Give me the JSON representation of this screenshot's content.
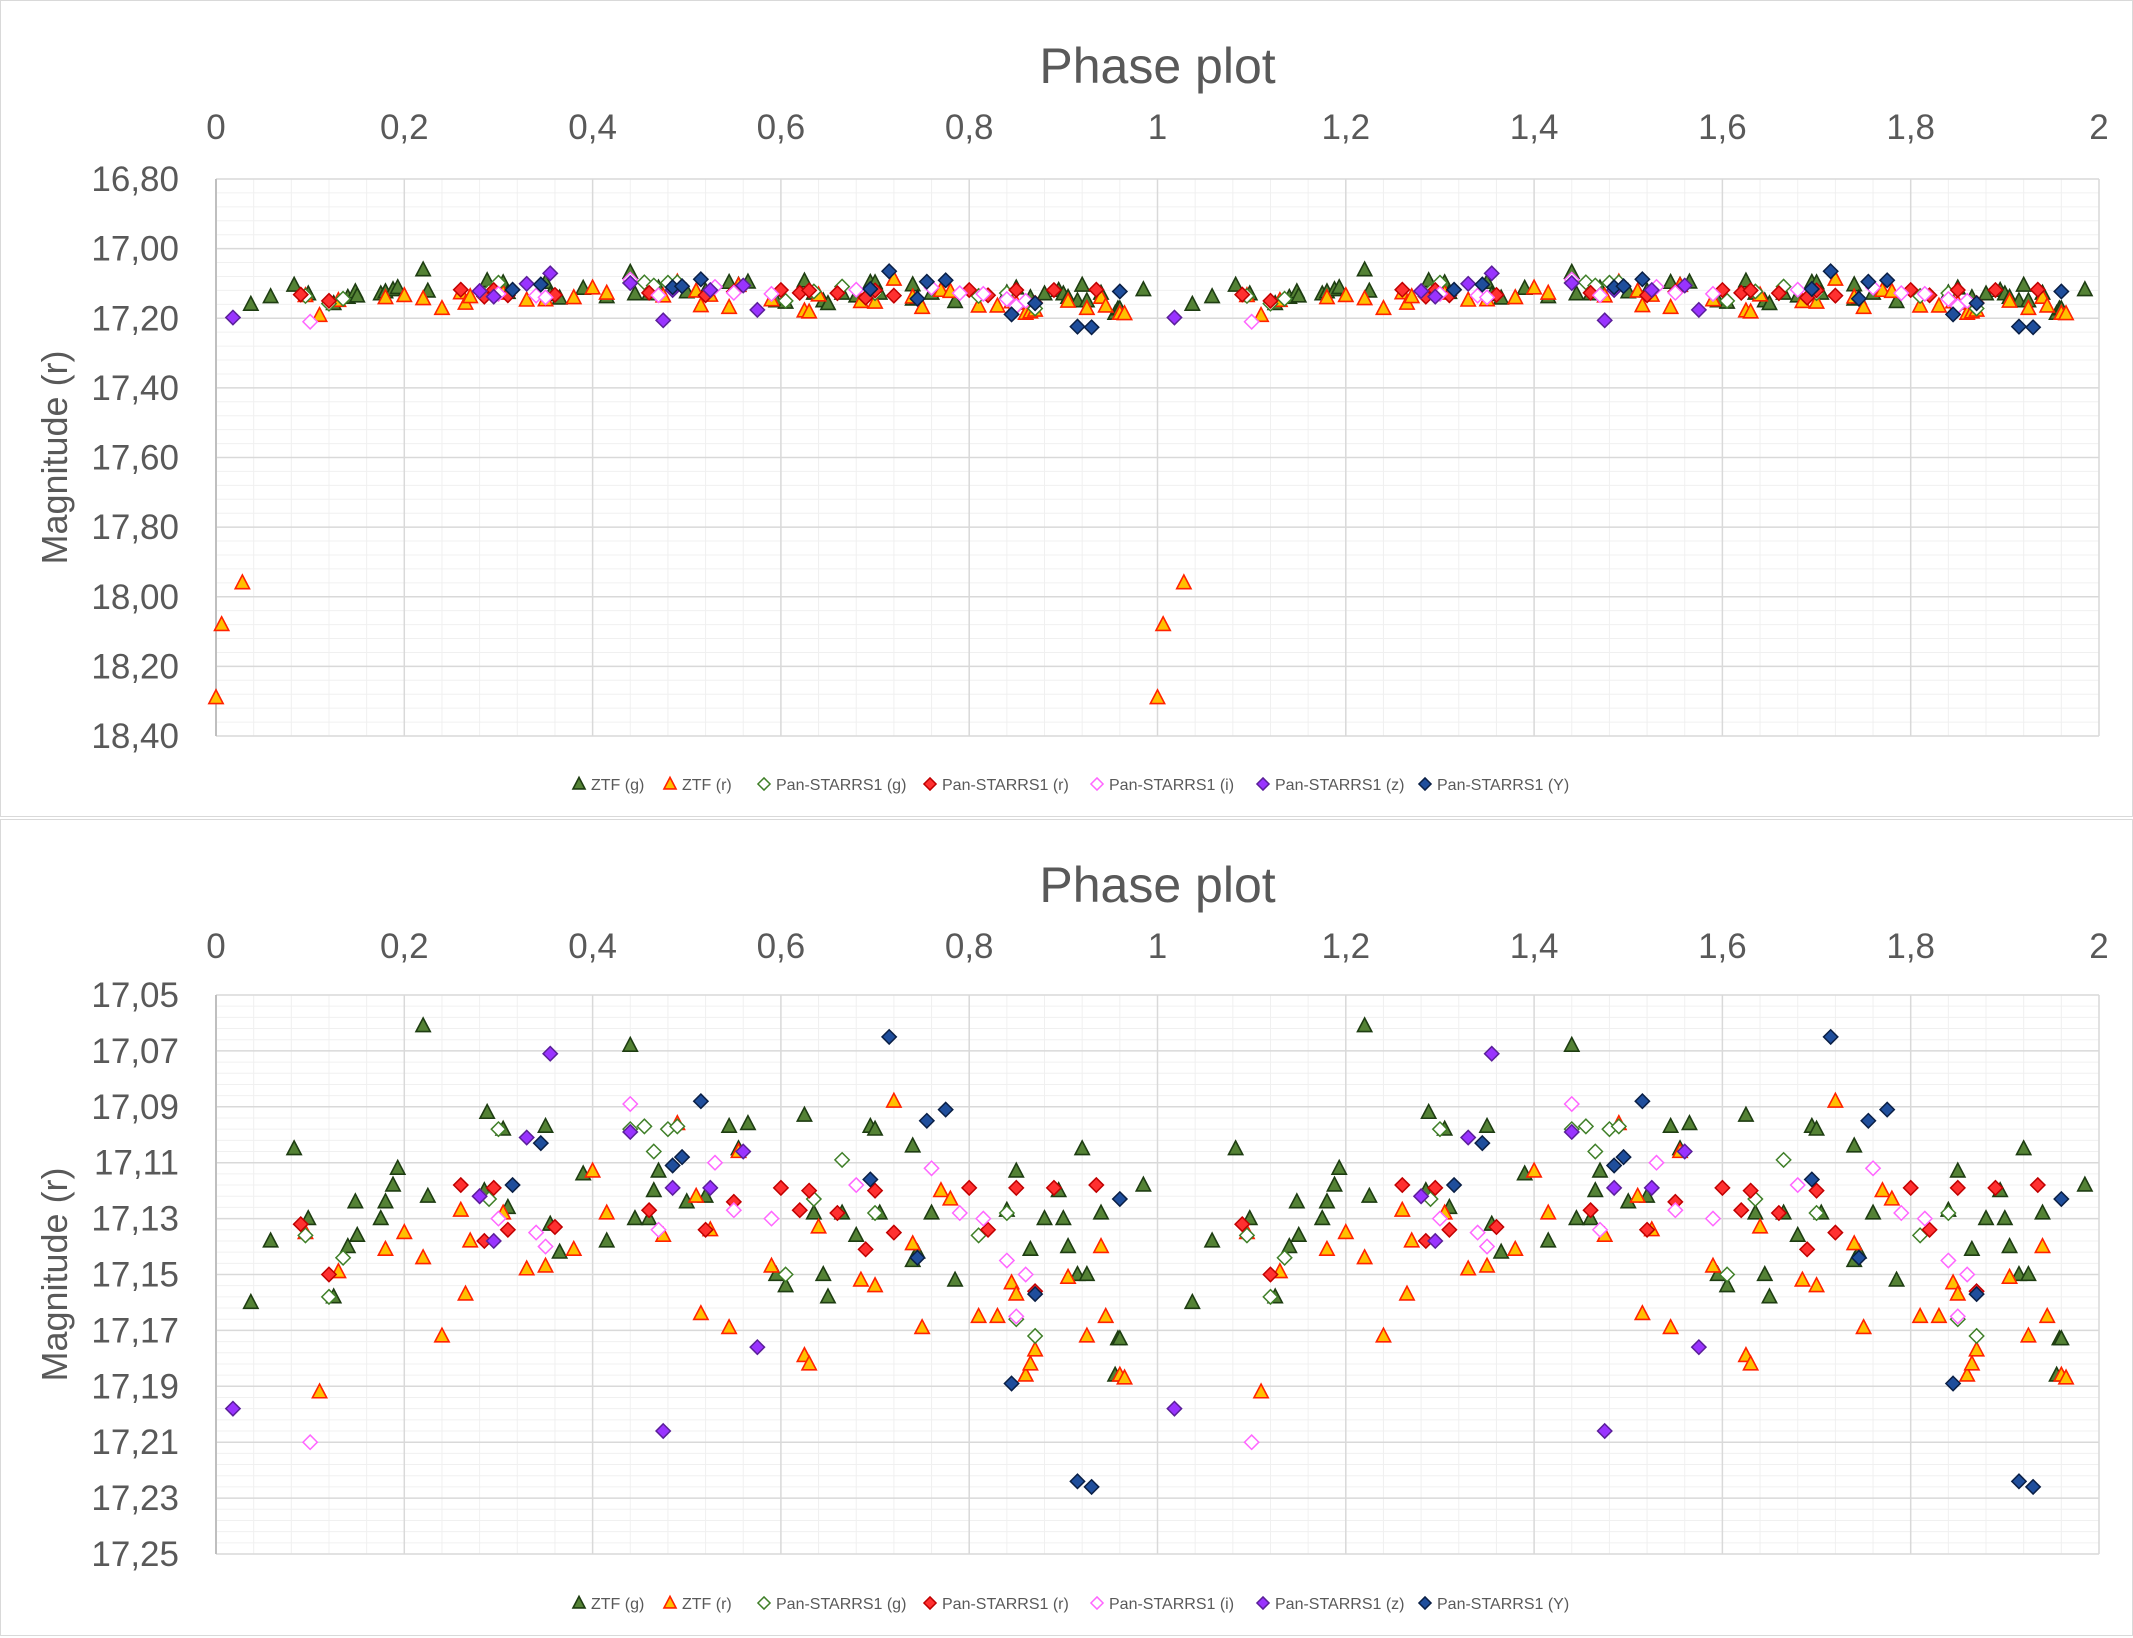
{
  "styles": {
    "ZTF (g)": {
      "shape": "triangle",
      "fill": "#548235",
      "stroke": "#1e3d12"
    },
    "ZTF (r)": {
      "shape": "triangle",
      "fill": "#ffc000",
      "stroke": "#ff2200"
    },
    "Pan-STARRS1 (g)": {
      "shape": "diamond",
      "fill": "#ffffff",
      "stroke": "#3f7f28"
    },
    "Pan-STARRS1 (r)": {
      "shape": "diamond",
      "fill": "#ff3030",
      "stroke": "#c00000"
    },
    "Pan-STARRS1 (i)": {
      "shape": "diamond",
      "fill": "#ffffff",
      "stroke": "#ff66ff"
    },
    "Pan-STARRS1 (z)": {
      "shape": "diamond",
      "fill": "#9933ff",
      "stroke": "#5a1f99"
    },
    "Pan-STARRS1 (Y)": {
      "shape": "diamond",
      "fill": "#1f4e9c",
      "stroke": "#0a1f45"
    }
  },
  "chart_data": [
    {
      "type": "scatter",
      "title": "Phase plot",
      "xlabel": "",
      "ylabel": "Magnitude (r)",
      "xlim": [
        0,
        2
      ],
      "ylim": [
        16.8,
        18.4
      ],
      "y_inverted": true,
      "x_axis_position": "top",
      "xticks": [
        "0",
        "0,2",
        "0,4",
        "0,6",
        "0,8",
        "1",
        "1,2",
        "1,4",
        "1,6",
        "1,8",
        "2"
      ],
      "yticks": [
        "16,80",
        "17,00",
        "17,20",
        "17,40",
        "17,60",
        "17,80",
        "18,00",
        "18,20",
        "18,40"
      ],
      "grid": true,
      "legend_position": "bottom",
      "series": [
        {
          "name": "ZTF (g)",
          "points": [
            [
              0.037,
              17.16
            ],
            [
              0.058,
              17.138
            ],
            [
              0.083,
              17.105
            ],
            [
              0.098,
              17.13
            ],
            [
              0.125,
              17.158
            ],
            [
              0.14,
              17.14
            ],
            [
              0.148,
              17.124
            ],
            [
              0.15,
              17.136
            ],
            [
              0.175,
              17.13
            ],
            [
              0.18,
              17.124
            ],
            [
              0.188,
              17.118
            ],
            [
              0.193,
              17.112
            ],
            [
              0.22,
              17.061
            ],
            [
              0.225,
              17.122
            ],
            [
              0.285,
              17.12
            ],
            [
              0.288,
              17.092
            ],
            [
              0.305,
              17.098
            ],
            [
              0.31,
              17.126
            ],
            [
              0.35,
              17.097
            ],
            [
              0.355,
              17.132
            ],
            [
              0.365,
              17.142
            ],
            [
              0.39,
              17.114
            ],
            [
              0.415,
              17.138
            ],
            [
              0.44,
              17.068
            ],
            [
              0.445,
              17.13
            ],
            [
              0.46,
              17.13
            ],
            [
              0.465,
              17.12
            ],
            [
              0.47,
              17.113
            ],
            [
              0.5,
              17.124
            ],
            [
              0.52,
              17.122
            ],
            [
              0.545,
              17.097
            ],
            [
              0.555,
              17.105
            ],
            [
              0.565,
              17.096
            ],
            [
              0.595,
              17.15
            ],
            [
              0.605,
              17.154
            ],
            [
              0.625,
              17.093
            ],
            [
              0.635,
              17.128
            ],
            [
              0.645,
              17.15
            ],
            [
              0.65,
              17.158
            ],
            [
              0.665,
              17.128
            ],
            [
              0.68,
              17.136
            ],
            [
              0.695,
              17.097
            ],
            [
              0.7,
              17.098
            ],
            [
              0.705,
              17.128
            ],
            [
              0.74,
              17.104
            ],
            [
              0.74,
              17.145
            ],
            [
              0.745,
              17.142
            ],
            [
              0.76,
              17.128
            ],
            [
              0.785,
              17.152
            ],
            [
              0.84,
              17.127
            ],
            [
              0.85,
              17.113
            ],
            [
              0.865,
              17.141
            ],
            [
              0.88,
              17.13
            ],
            [
              0.895,
              17.12
            ],
            [
              0.9,
              17.13
            ],
            [
              0.905,
              17.14
            ],
            [
              0.915,
              17.15
            ],
            [
              0.92,
              17.105
            ],
            [
              0.925,
              17.15
            ],
            [
              0.94,
              17.128
            ],
            [
              0.955,
              17.186
            ],
            [
              0.958,
              17.173
            ],
            [
              0.96,
              17.173
            ],
            [
              0.985,
              17.118
            ]
          ]
        },
        {
          "name": "ZTF (r)",
          "points": [
            [
              0.0,
              18.29
            ],
            [
              0.006,
              18.08
            ],
            [
              0.028,
              17.96
            ],
            [
              0.095,
              17.135
            ],
            [
              0.11,
              17.192
            ],
            [
              0.13,
              17.149
            ],
            [
              0.18,
              17.141
            ],
            [
              0.2,
              17.135
            ],
            [
              0.22,
              17.144
            ],
            [
              0.24,
              17.172
            ],
            [
              0.26,
              17.127
            ],
            [
              0.265,
              17.157
            ],
            [
              0.27,
              17.138
            ],
            [
              0.305,
              17.128
            ],
            [
              0.33,
              17.148
            ],
            [
              0.35,
              17.147
            ],
            [
              0.38,
              17.141
            ],
            [
              0.4,
              17.113
            ],
            [
              0.415,
              17.128
            ],
            [
              0.475,
              17.136
            ],
            [
              0.49,
              17.096
            ],
            [
              0.51,
              17.122
            ],
            [
              0.515,
              17.164
            ],
            [
              0.525,
              17.134
            ],
            [
              0.545,
              17.169
            ],
            [
              0.555,
              17.106
            ],
            [
              0.59,
              17.147
            ],
            [
              0.625,
              17.179
            ],
            [
              0.63,
              17.182
            ],
            [
              0.64,
              17.133
            ],
            [
              0.685,
              17.152
            ],
            [
              0.7,
              17.154
            ],
            [
              0.72,
              17.088
            ],
            [
              0.74,
              17.139
            ],
            [
              0.75,
              17.169
            ],
            [
              0.77,
              17.12
            ],
            [
              0.78,
              17.123
            ],
            [
              0.81,
              17.165
            ],
            [
              0.83,
              17.165
            ],
            [
              0.845,
              17.153
            ],
            [
              0.85,
              17.157
            ],
            [
              0.86,
              17.186
            ],
            [
              0.865,
              17.182
            ],
            [
              0.87,
              17.177
            ],
            [
              0.905,
              17.151
            ],
            [
              0.925,
              17.172
            ],
            [
              0.94,
              17.14
            ],
            [
              0.945,
              17.165
            ],
            [
              0.96,
              17.186
            ],
            [
              0.965,
              17.187
            ]
          ]
        },
        {
          "name": "Pan-STARRS1 (g)",
          "points": [
            [
              0.12,
              17.158
            ],
            [
              0.095,
              17.136
            ],
            [
              0.135,
              17.144
            ],
            [
              0.29,
              17.123
            ],
            [
              0.3,
              17.098
            ],
            [
              0.44,
              17.098
            ],
            [
              0.455,
              17.097
            ],
            [
              0.465,
              17.106
            ],
            [
              0.48,
              17.098
            ],
            [
              0.49,
              17.097
            ],
            [
              0.605,
              17.15
            ],
            [
              0.635,
              17.123
            ],
            [
              0.665,
              17.109
            ],
            [
              0.7,
              17.128
            ],
            [
              0.81,
              17.136
            ],
            [
              0.84,
              17.128
            ],
            [
              0.85,
              17.166
            ],
            [
              0.87,
              17.172
            ]
          ]
        },
        {
          "name": "Pan-STARRS1 (r)",
          "points": [
            [
              0.09,
              17.132
            ],
            [
              0.12,
              17.15
            ],
            [
              0.26,
              17.118
            ],
            [
              0.285,
              17.138
            ],
            [
              0.295,
              17.119
            ],
            [
              0.31,
              17.134
            ],
            [
              0.36,
              17.133
            ],
            [
              0.46,
              17.127
            ],
            [
              0.52,
              17.134
            ],
            [
              0.55,
              17.124
            ],
            [
              0.6,
              17.119
            ],
            [
              0.62,
              17.127
            ],
            [
              0.63,
              17.12
            ],
            [
              0.66,
              17.128
            ],
            [
              0.69,
              17.141
            ],
            [
              0.7,
              17.12
            ],
            [
              0.72,
              17.135
            ],
            [
              0.8,
              17.119
            ],
            [
              0.82,
              17.134
            ],
            [
              0.85,
              17.119
            ],
            [
              0.87,
              17.156
            ],
            [
              0.89,
              17.119
            ],
            [
              0.935,
              17.118
            ]
          ]
        },
        {
          "name": "Pan-STARRS1 (i)",
          "points": [
            [
              0.1,
              17.21
            ],
            [
              0.28,
              17.122
            ],
            [
              0.3,
              17.13
            ],
            [
              0.34,
              17.135
            ],
            [
              0.35,
              17.14
            ],
            [
              0.44,
              17.089
            ],
            [
              0.47,
              17.134
            ],
            [
              0.53,
              17.11
            ],
            [
              0.55,
              17.127
            ],
            [
              0.59,
              17.13
            ],
            [
              0.68,
              17.118
            ],
            [
              0.76,
              17.112
            ],
            [
              0.79,
              17.128
            ],
            [
              0.815,
              17.13
            ],
            [
              0.84,
              17.145
            ],
            [
              0.85,
              17.165
            ],
            [
              0.86,
              17.15
            ]
          ]
        },
        {
          "name": "Pan-STARRS1 (z)",
          "points": [
            [
              0.018,
              17.198
            ],
            [
              0.28,
              17.122
            ],
            [
              0.295,
              17.138
            ],
            [
              0.33,
              17.101
            ],
            [
              0.355,
              17.071
            ],
            [
              0.44,
              17.099
            ],
            [
              0.475,
              17.206
            ],
            [
              0.485,
              17.119
            ],
            [
              0.525,
              17.119
            ],
            [
              0.575,
              17.176
            ],
            [
              0.56,
              17.106
            ]
          ]
        },
        {
          "name": "Pan-STARRS1 (Y)",
          "points": [
            [
              0.315,
              17.118
            ],
            [
              0.345,
              17.103
            ],
            [
              0.485,
              17.111
            ],
            [
              0.495,
              17.108
            ],
            [
              0.515,
              17.088
            ],
            [
              0.695,
              17.116
            ],
            [
              0.715,
              17.065
            ],
            [
              0.745,
              17.144
            ],
            [
              0.755,
              17.095
            ],
            [
              0.775,
              17.091
            ],
            [
              0.845,
              17.189
            ],
            [
              0.87,
              17.157
            ],
            [
              0.915,
              17.224
            ],
            [
              0.93,
              17.226
            ],
            [
              0.96,
              17.123
            ]
          ]
        }
      ]
    },
    {
      "type": "scatter",
      "title": "Phase plot",
      "xlabel": "",
      "ylabel": "Magnitude (r)",
      "xlim": [
        0,
        2
      ],
      "ylim": [
        17.05,
        17.25
      ],
      "y_inverted": true,
      "x_axis_position": "top",
      "xticks": [
        "0",
        "0,2",
        "0,4",
        "0,6",
        "0,8",
        "1",
        "1,2",
        "1,4",
        "1,6",
        "1,8",
        "2"
      ],
      "yticks": [
        "17,05",
        "17,07",
        "17,09",
        "17,11",
        "17,13",
        "17,15",
        "17,17",
        "17,19",
        "17,21",
        "17,23",
        "17,25"
      ],
      "grid": true,
      "legend_position": "bottom",
      "series": "same as first chart (zoomed y-range)"
    }
  ]
}
